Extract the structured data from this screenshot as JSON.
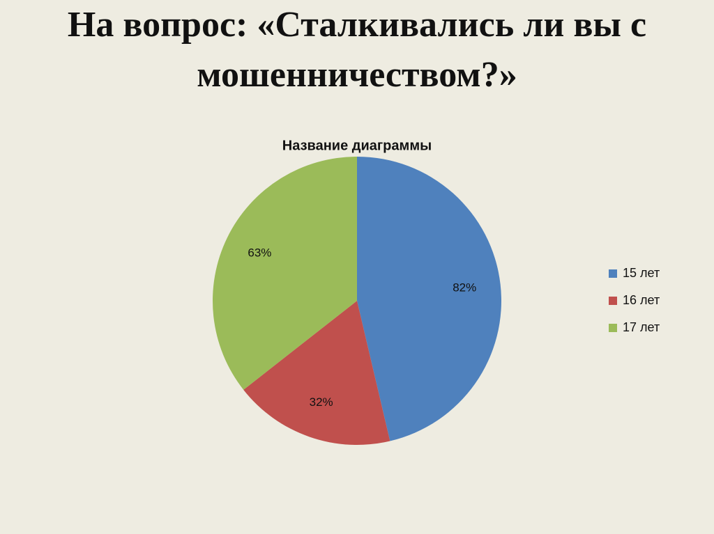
{
  "slide_title": "На вопрос: «Сталкивались ли вы с мошенничеством?»",
  "chart_data": {
    "type": "pie",
    "title": "Название диаграммы",
    "categories": [
      "15 лет",
      "16 лет",
      "17 лет"
    ],
    "values": [
      82,
      32,
      63
    ],
    "value_labels": [
      "82%",
      "32%",
      "63%"
    ],
    "colors": [
      "#4f81bd",
      "#c0504d",
      "#9bbb59"
    ],
    "legend": "right"
  }
}
